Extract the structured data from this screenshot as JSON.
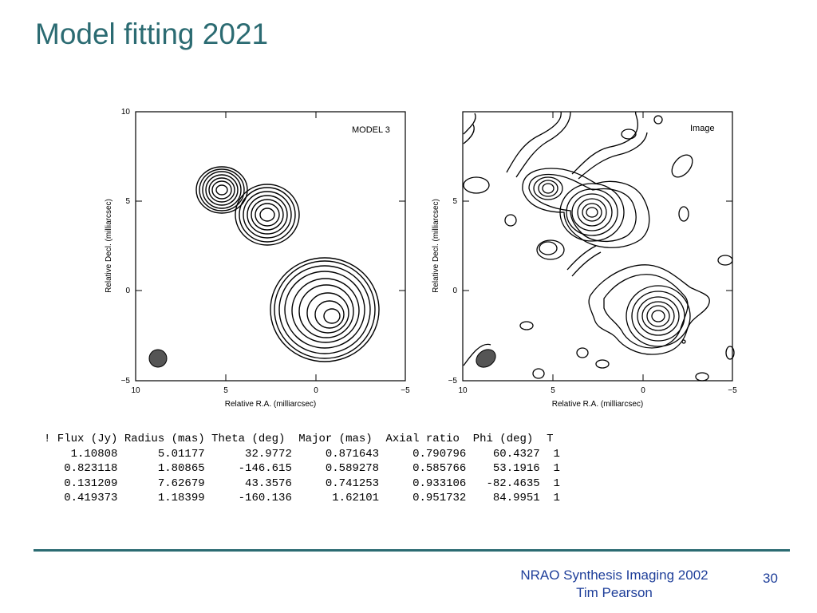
{
  "slide": {
    "title": "Model fitting 2021",
    "footer_line1": "NRAO Synthesis Imaging 2002",
    "footer_line2": "Tim Pearson",
    "page_number": "30"
  },
  "panels": {
    "left_label": "MODEL 3",
    "right_label": "Image",
    "xlabel": "Relative R.A. (milliarcsec)",
    "ylabel": "Relative Decl. (milliarcsec)",
    "left_xticks": [
      "10",
      "5",
      "0",
      "−5"
    ],
    "left_yticks": [
      "10",
      "5",
      "0",
      "−5"
    ],
    "right_xticks": [
      "10",
      "5",
      "0",
      "−5"
    ],
    "right_yticks": [
      "5",
      "0",
      "−5"
    ]
  },
  "table": {
    "header": [
      "! Flux (Jy)",
      "Radius (mas)",
      "Theta (deg)",
      "Major (mas)",
      "Axial ratio",
      "Phi (deg)",
      "T"
    ],
    "rows": [
      [
        "1.10808",
        "5.01177",
        "32.9772",
        "0.871643",
        "0.790796",
        "60.4327",
        "1"
      ],
      [
        "0.823118",
        "1.80865",
        "-146.615",
        "0.589278",
        "0.585766",
        "53.1916",
        "1"
      ],
      [
        "0.131209",
        "7.62679",
        "43.3576",
        "0.741253",
        "0.933106",
        "-82.4635",
        "1"
      ],
      [
        "0.419373",
        "1.18399",
        "-160.136",
        "1.62101",
        "0.951732",
        "84.9951",
        "1"
      ]
    ]
  }
}
